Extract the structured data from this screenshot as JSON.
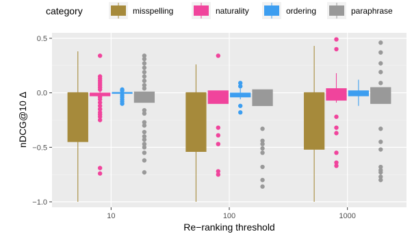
{
  "chart_data": {
    "type": "boxplot",
    "xlabel": "Re−ranking threshold",
    "ylabel": "nDCG@10 Δ",
    "ylim": [
      -1.05,
      0.55
    ],
    "y_ticks": [
      0.5,
      0.0,
      -0.5,
      -1.0
    ],
    "y_tick_labels": [
      "0.5",
      "0.0",
      "−0.5",
      "−1.0"
    ],
    "categories": [
      "10",
      "100",
      "1000"
    ],
    "grid": true,
    "legend": {
      "title": "category",
      "position": "top",
      "entries": [
        {
          "name": "misspelling",
          "color": "#A68A3B"
        },
        {
          "name": "naturality",
          "color": "#F0449C"
        },
        {
          "name": "ordering",
          "color": "#3D9EF0"
        },
        {
          "name": "paraphrase",
          "color": "#999999"
        }
      ]
    },
    "series": [
      {
        "name": "misspelling",
        "color": "#A68A3B",
        "boxes": [
          {
            "min": -1.0,
            "q1": -0.45,
            "median": 0.0,
            "q3": 0.0,
            "max": 0.38,
            "outliers": []
          },
          {
            "min": -1.0,
            "q1": -0.54,
            "median": 0.0,
            "q3": 0.0,
            "max": 0.26,
            "outliers": []
          },
          {
            "min": -1.0,
            "q1": -0.52,
            "median": 0.0,
            "q3": 0.0,
            "max": 0.43,
            "outliers": []
          }
        ]
      },
      {
        "name": "naturality",
        "color": "#F0449C",
        "boxes": [
          {
            "min": -0.03,
            "q1": -0.03,
            "median": -0.02,
            "q3": 0.0,
            "max": 0.01,
            "outliers": [
              0.34,
              0.15,
              0.13,
              0.11,
              0.09,
              0.07,
              0.05,
              0.03,
              -0.04,
              -0.06,
              -0.09,
              -0.12,
              -0.15,
              -0.18,
              -0.2,
              -0.22,
              -0.25,
              -0.69,
              -0.74
            ]
          },
          {
            "min": -0.1,
            "q1": -0.1,
            "median": -0.03,
            "q3": 0.02,
            "max": 0.02,
            "outliers": [
              0.34,
              -0.32,
              -0.39,
              -0.47,
              -0.72,
              -0.75
            ]
          },
          {
            "min": -0.09,
            "q1": -0.07,
            "median": -0.03,
            "q3": 0.04,
            "max": 0.18,
            "outliers": [
              0.49,
              0.4,
              -0.22,
              -0.32,
              -0.37,
              -0.55,
              -0.64,
              -0.67
            ]
          }
        ]
      },
      {
        "name": "ordering",
        "color": "#3D9EF0",
        "boxes": [
          {
            "min": -0.01,
            "q1": -0.005,
            "median": 0.0,
            "q3": 0.005,
            "max": 0.01,
            "outliers": [
              0.03,
              0.02,
              -0.02,
              -0.04,
              -0.06,
              -0.08,
              -0.1
            ]
          },
          {
            "min": -0.06,
            "q1": -0.04,
            "median": -0.02,
            "q3": 0.0,
            "max": 0.04,
            "outliers": [
              0.09,
              0.06,
              -0.12,
              -0.18
            ]
          },
          {
            "min": -0.12,
            "q1": -0.03,
            "median": 0.0,
            "q3": 0.02,
            "max": 0.12,
            "outliers": []
          }
        ]
      },
      {
        "name": "paraphrase",
        "color": "#999999",
        "boxes": [
          {
            "min": -0.09,
            "q1": -0.09,
            "median": -0.05,
            "q3": 0.01,
            "max": 0.01,
            "outliers": [
              0.34,
              0.31,
              0.27,
              0.23,
              0.19,
              0.15,
              0.11,
              0.07,
              0.04,
              -0.16,
              -0.19,
              -0.27,
              -0.3,
              -0.36,
              -0.4,
              -0.43,
              -0.47,
              -0.5,
              -0.55,
              -0.62,
              -0.73
            ]
          },
          {
            "min": -0.12,
            "q1": -0.12,
            "median": -0.05,
            "q3": 0.03,
            "max": 0.03,
            "outliers": [
              -0.33,
              -0.44,
              -0.47,
              -0.51,
              -0.55,
              -0.68,
              -0.8,
              -0.86
            ]
          },
          {
            "min": -0.1,
            "q1": -0.1,
            "median": -0.02,
            "q3": 0.05,
            "max": 0.05,
            "outliers": [
              0.46,
              0.37,
              0.27,
              0.19,
              0.09,
              -0.33,
              -0.45,
              -0.52,
              -0.68,
              -0.71,
              -0.73,
              -0.77,
              -0.8
            ]
          }
        ]
      }
    ]
  }
}
